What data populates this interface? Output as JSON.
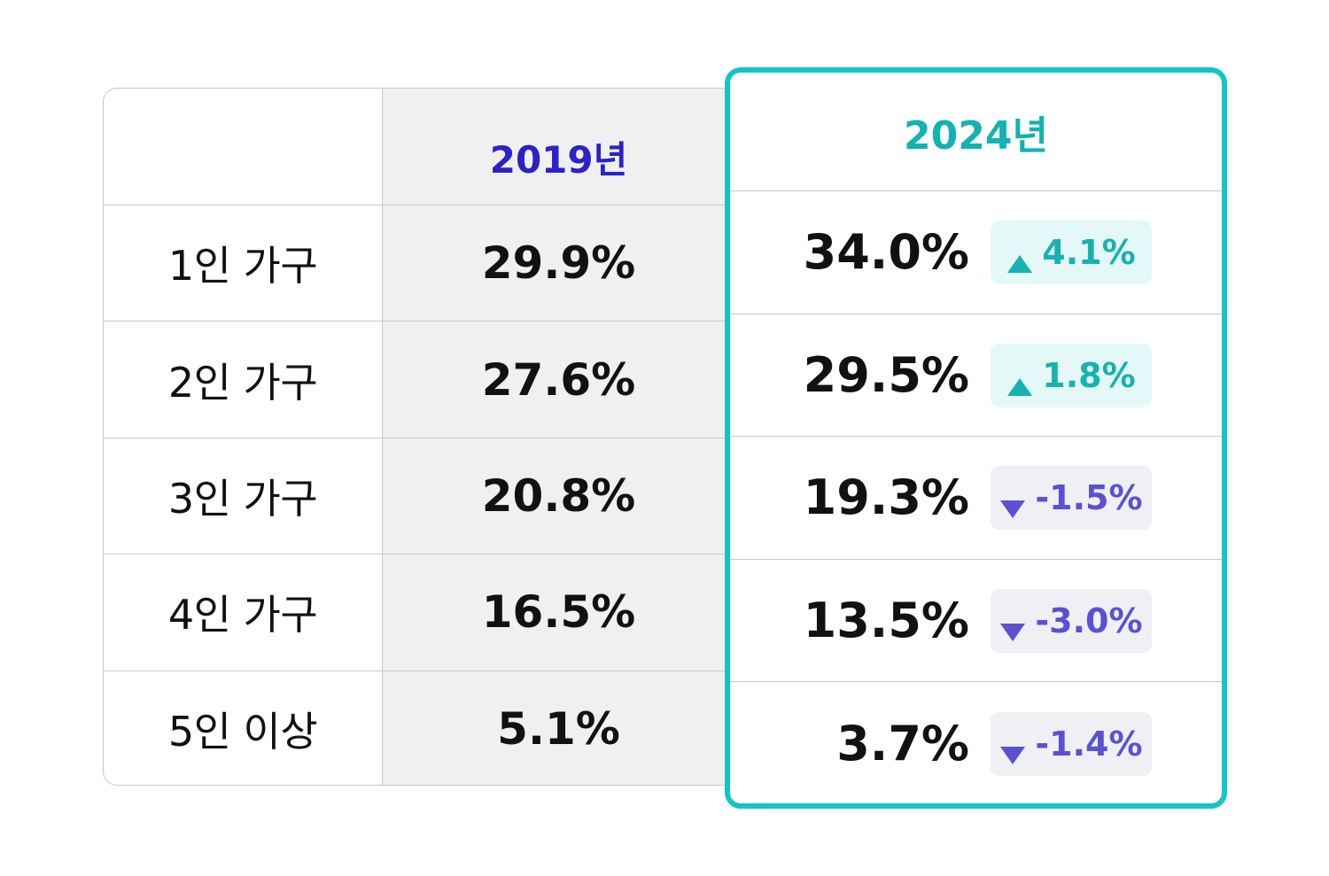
{
  "chart_data": {
    "type": "table",
    "columns": [
      "",
      "2019년",
      "2024년"
    ],
    "rows": [
      {
        "label": "1인 가구",
        "v2019": "29.9%",
        "v2024": "34.0%",
        "change": "4.1%",
        "direction": "up"
      },
      {
        "label": "2인 가구",
        "v2019": "27.6%",
        "v2024": "29.5%",
        "change": "1.8%",
        "direction": "up"
      },
      {
        "label": "3인 가구",
        "v2019": "20.8%",
        "v2024": "19.3%",
        "change": "-1.5%",
        "direction": "down"
      },
      {
        "label": "4인 가구",
        "v2019": "16.5%",
        "v2024": "13.5%",
        "change": "-3.0%",
        "direction": "down"
      },
      {
        "label": "5인 이상",
        "v2019": "5.1%",
        "v2024": "3.7%",
        "change": "-1.4%",
        "direction": "down"
      }
    ],
    "colors": {
      "highlight_border": "#12c6c4",
      "header_2019": "#2b22c8",
      "header_2024": "#12b3b1",
      "up": "#18b2ae",
      "down": "#5b51d2"
    }
  }
}
